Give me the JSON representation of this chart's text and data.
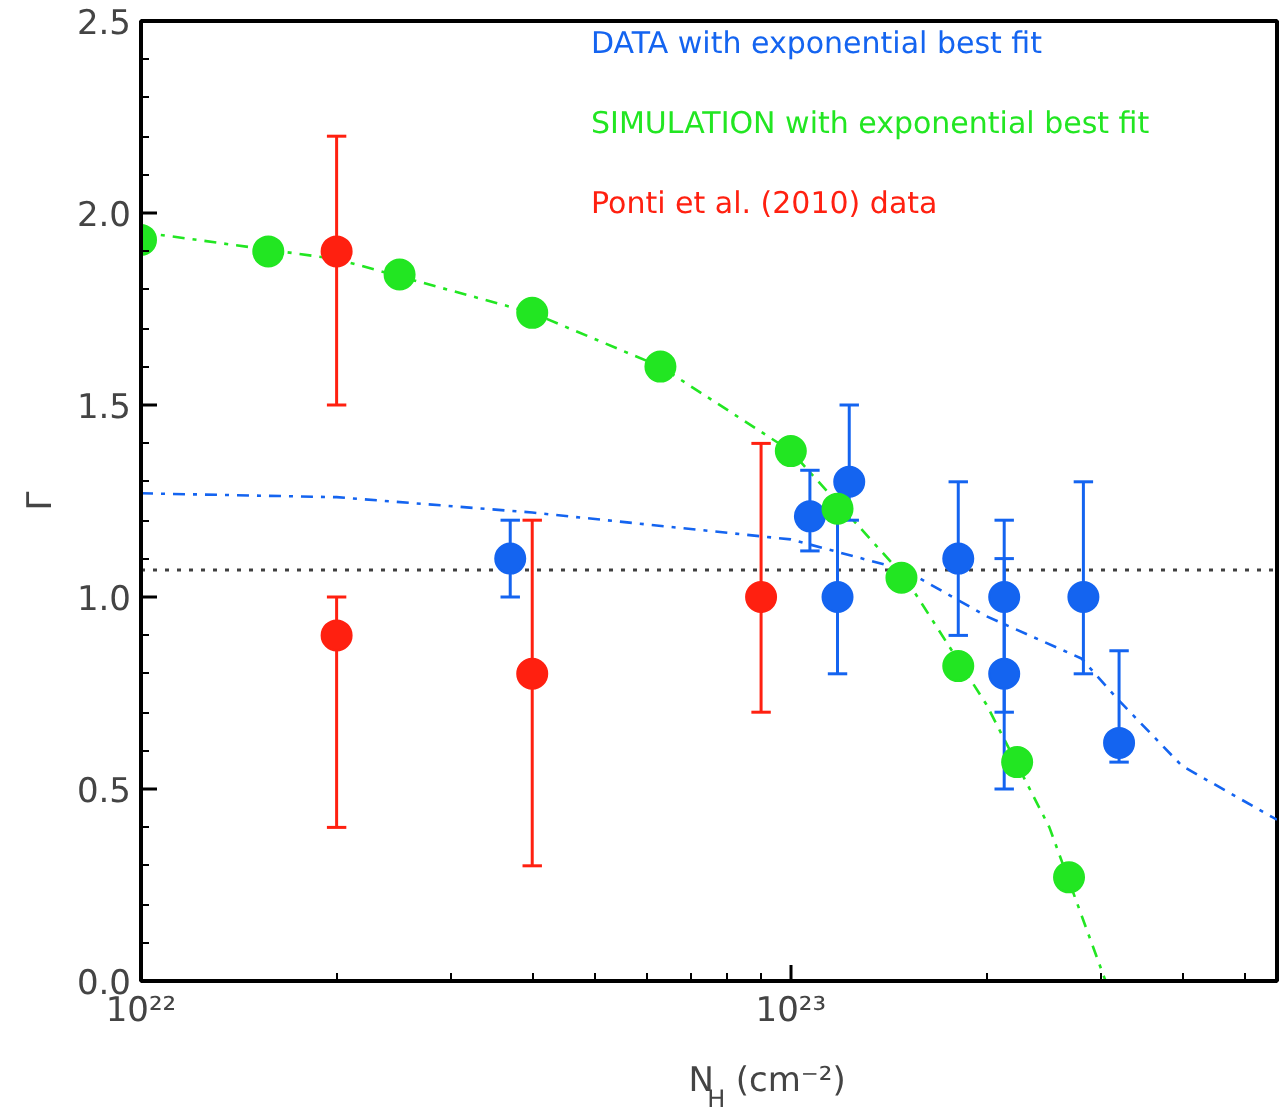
{
  "chart_data": {
    "type": "scatter",
    "xlabel": "N$_{H}$ (cm⁻²)",
    "ylabel": "Γ",
    "log": "x",
    "xlim": [
      1e+22,
      5.6e+23
    ],
    "xticks": [
      {
        "value": 1e+22,
        "label": "10²²"
      },
      {
        "value": 1e+23,
        "label": "10²³"
      }
    ],
    "ylim": [
      0,
      2.5
    ],
    "yticks": [
      {
        "value": 0,
        "label": "0.0"
      },
      0.5,
      {
        "value": 1,
        "label": "1.0"
      },
      1.5,
      {
        "value": 2,
        "label": "2.0"
      },
      2.5
    ],
    "marker": "circle",
    "grid": false,
    "legend": "top",
    "series": [
      {
        "name": "DATA with exponential best fit",
        "color": "#1464f0",
        "x": [
          3.7e+22,
          1.07e+23,
          1.18e+23,
          1.23e+23,
          1.81e+23,
          2.13e+23,
          2.13e+23,
          2.82e+23,
          3.2e+23
        ],
        "values": [
          1.1,
          1.21,
          1.0,
          1.3,
          1.1,
          1.0,
          0.8,
          1.0,
          0.62
        ],
        "errors": [
          [
            1.0,
            1.2
          ],
          [
            1.12,
            1.33
          ],
          [
            0.8,
            1.2
          ],
          [
            1.2,
            1.5
          ],
          [
            0.9,
            1.3
          ],
          [
            0.7,
            1.2
          ],
          [
            0.5,
            1.1
          ],
          [
            0.8,
            1.3
          ],
          [
            0.57,
            0.86
          ]
        ]
      },
      {
        "name": "SIMULATION with exponential best fit",
        "color": "#22e622",
        "x": [
          1e+22,
          1.57e+22,
          2.5e+22,
          4e+22,
          6.3e+22,
          1e+23,
          1.18e+23,
          1.48e+23,
          1.81e+23,
          2.23e+23,
          2.68e+23
        ],
        "values": [
          1.93,
          1.9,
          1.84,
          1.74,
          1.6,
          1.38,
          1.23,
          1.05,
          0.82,
          0.57,
          0.27
        ]
      },
      {
        "name": "Ponti et al. (2010) data",
        "color": "#ff2010",
        "x": [
          2e+22,
          2e+22,
          4e+22,
          9e+22
        ],
        "values": [
          1.9,
          0.9,
          0.8,
          1.0
        ],
        "errors": [
          [
            1.5,
            2.2
          ],
          [
            0.4,
            1.0
          ],
          [
            0.3,
            1.2
          ],
          [
            0.7,
            1.4
          ]
        ]
      },
      {
        "type": "line",
        "marker": "none",
        "line_style": "dashed",
        "color": "#1464f0",
        "x": [
          1e+22,
          2e+22,
          4e+22,
          1e+23,
          1.5e+23,
          2e+23,
          2.8e+23,
          3.2e+23,
          4e+23,
          5.6e+23
        ],
        "values": [
          1.27,
          1.26,
          1.22,
          1.15,
          1.07,
          0.95,
          0.84,
          0.73,
          0.56,
          0.42
        ]
      },
      {
        "type": "line",
        "marker": "none",
        "line_style": "dashed",
        "color": "#22e622",
        "x": [
          1e+22,
          2e+22,
          4e+22,
          6.3e+22,
          1e+23,
          1.5e+23,
          2e+23,
          2.5e+23,
          3.05e+23
        ],
        "values": [
          1.95,
          1.88,
          1.74,
          1.6,
          1.38,
          1.05,
          0.72,
          0.4,
          0
        ]
      }
    ],
    "ref_lines": [
      {
        "axis": "y",
        "value": 1.07,
        "color": "#404040",
        "line_style": "dotted"
      }
    ]
  }
}
